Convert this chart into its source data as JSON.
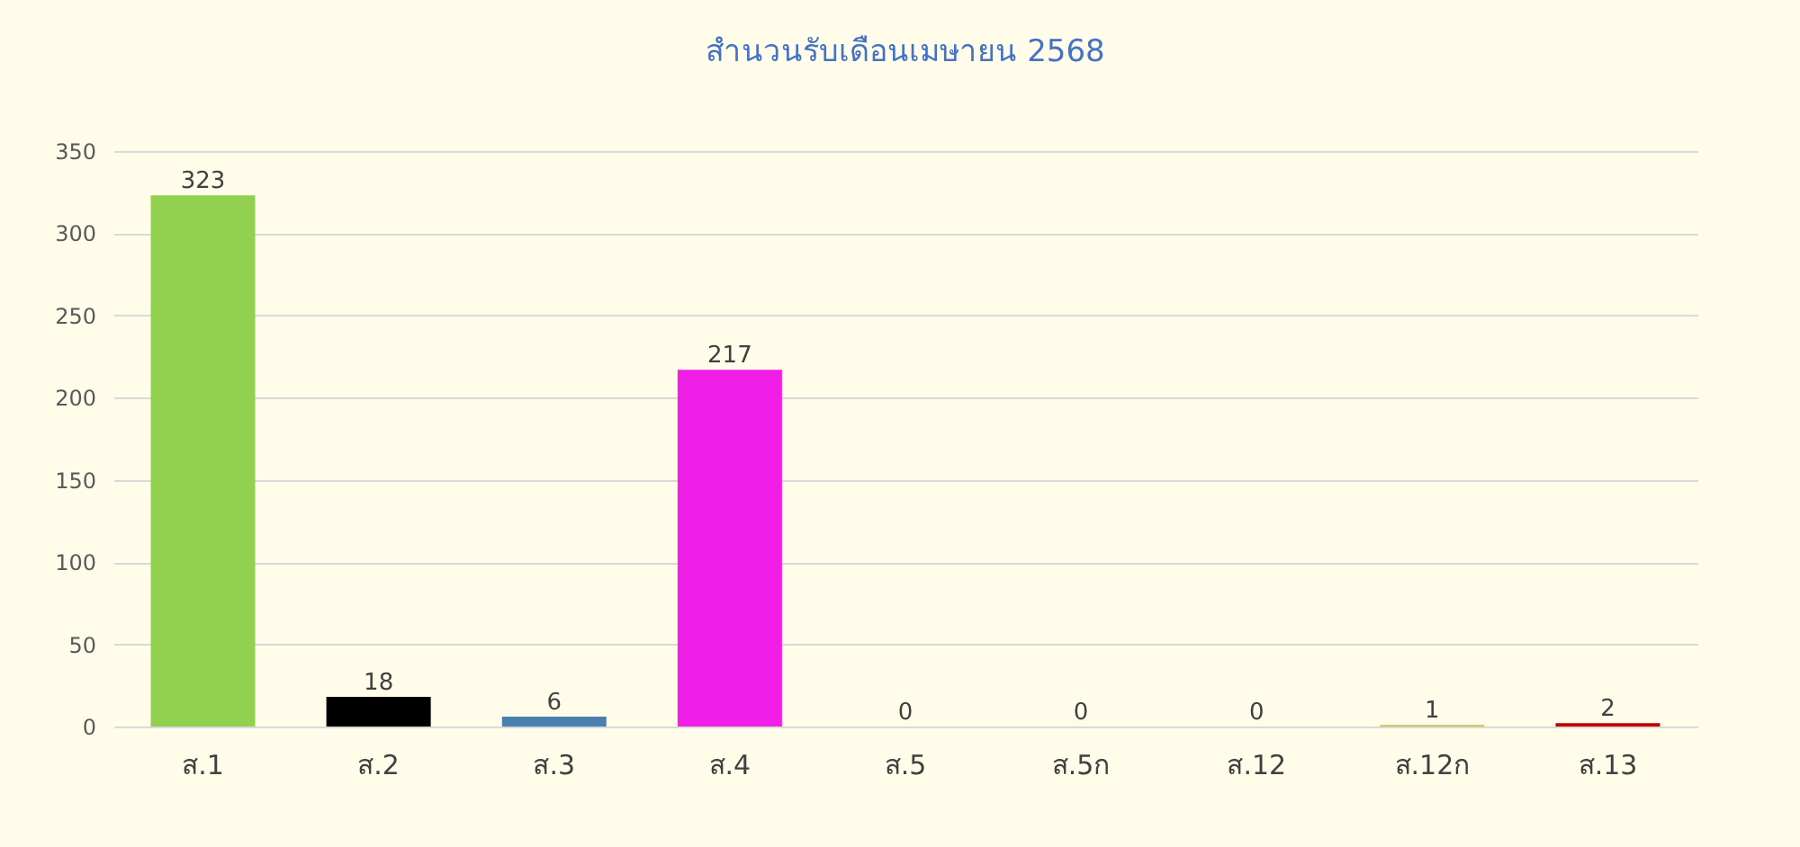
{
  "chart_data": {
    "type": "bar",
    "title": "สำนวนรับเดือนเมษายน 2568",
    "categories": [
      "ส.1",
      "ส.2",
      "ส.3",
      "ส.4",
      "ส.5",
      "ส.5ก",
      "ส.12",
      "ส.12ก",
      "ส.13"
    ],
    "values": [
      323,
      18,
      6,
      217,
      0,
      0,
      0,
      1,
      2
    ],
    "colors": [
      "#92d050",
      "#000000",
      "#4a7fb0",
      "#f01ee6",
      "#808080",
      "#c55a11",
      "#5b2c8a",
      "#c8c050",
      "#c00000"
    ],
    "ylim": [
      0,
      350
    ],
    "yticks": [
      0,
      50,
      100,
      150,
      200,
      250,
      300,
      350
    ],
    "grid": "y",
    "data_labels": true,
    "legend": false
  }
}
